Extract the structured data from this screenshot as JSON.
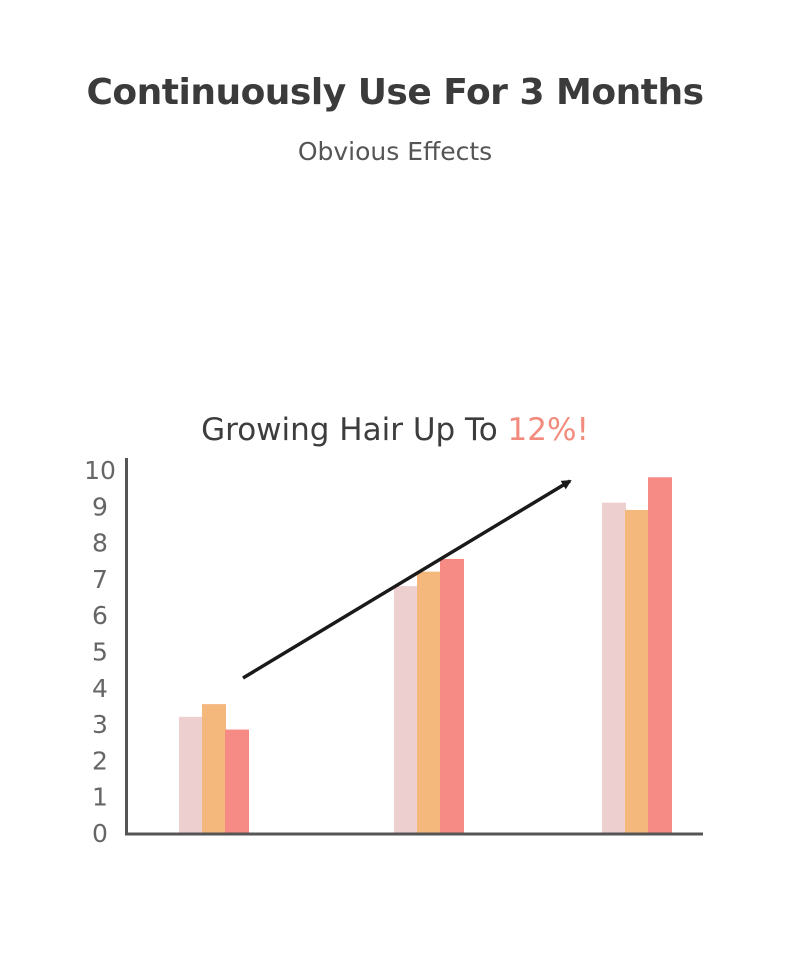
{
  "header": {
    "title": "Continuously Use For 3 Months",
    "subtitle": "Obvious Effects"
  },
  "chart_data": {
    "type": "bar",
    "title_prefix": "Growing Hair Up To ",
    "title_highlight": "12%!",
    "title_highlight_color": "#f28b7d",
    "categories": [
      "",
      "",
      ""
    ],
    "series": [
      {
        "values": [
          3.2,
          6.8,
          9.1
        ],
        "color": "#eecfcf"
      },
      {
        "values": [
          3.55,
          7.2,
          8.9
        ],
        "color": "#f4b77c"
      },
      {
        "values": [
          2.85,
          7.55,
          9.8
        ],
        "color": "#f58b84"
      }
    ],
    "ylim": [
      0,
      10
    ],
    "yticks": [
      "0",
      "1",
      "2",
      "3",
      "4",
      "5",
      "6",
      "7",
      "8",
      "9",
      "10"
    ],
    "grid": false,
    "trend_arrow": true
  }
}
